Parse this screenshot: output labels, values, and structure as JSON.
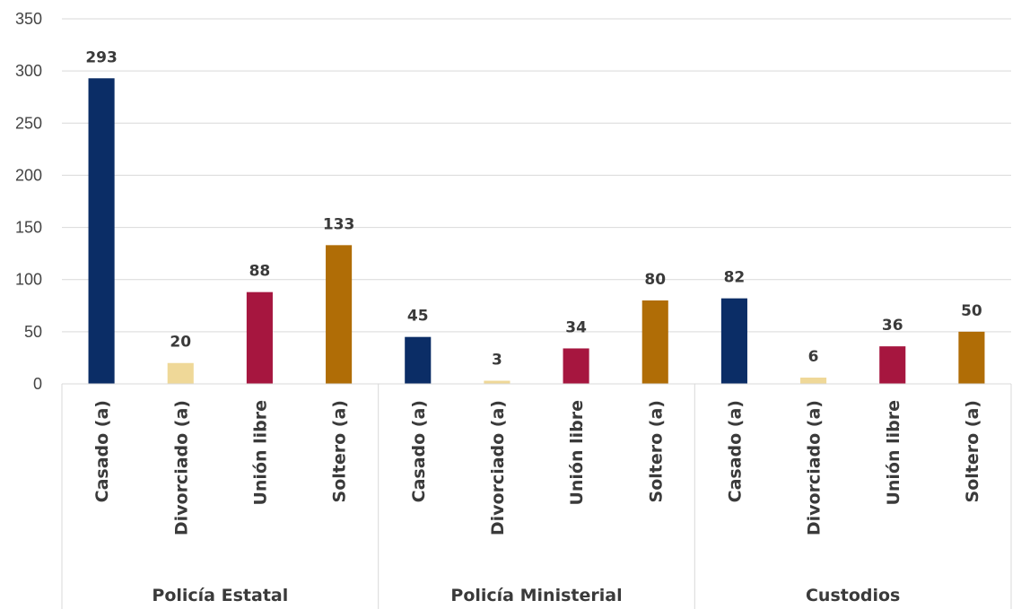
{
  "chart_data": {
    "type": "bar",
    "title": "",
    "xlabel": "",
    "ylabel": "",
    "ylim": [
      0,
      350
    ],
    "yticks": [
      0,
      50,
      100,
      150,
      200,
      250,
      300,
      350
    ],
    "grid": true,
    "legend": "none",
    "groups": [
      {
        "label": "Policía Estatal",
        "bars": [
          {
            "category": "Casado (a)",
            "value": 293
          },
          {
            "category": "Divorciado (a)",
            "value": 20
          },
          {
            "category": "Unión libre",
            "value": 88
          },
          {
            "category": "Soltero (a)",
            "value": 133
          }
        ]
      },
      {
        "label": "Policía Ministerial",
        "bars": [
          {
            "category": "Casado (a)",
            "value": 45
          },
          {
            "category": "Divorciado (a)",
            "value": 3
          },
          {
            "category": "Unión libre",
            "value": 34
          },
          {
            "category": "Soltero (a)",
            "value": 80
          }
        ]
      },
      {
        "label": "Custodios",
        "bars": [
          {
            "category": "Casado (a)",
            "value": 82
          },
          {
            "category": "Divorciado (a)",
            "value": 6
          },
          {
            "category": "Unión libre",
            "value": 36
          },
          {
            "category": "Soltero (a)",
            "value": 50
          }
        ]
      }
    ],
    "category_colors": {
      "Casado (a)": "#0b2d66",
      "Divorciado (a)": "#efd898",
      "Unión libre": "#a6163f",
      "Soltero (a)": "#b06d06"
    }
  }
}
